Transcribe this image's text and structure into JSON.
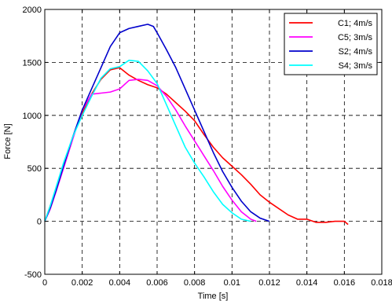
{
  "chart_data": {
    "type": "line",
    "xlabel": "Time [s]",
    "ylabel": "Force [N]",
    "xlim": [
      0,
      0.018
    ],
    "ylim": [
      -500,
      2000
    ],
    "xticks": [
      0,
      0.002,
      0.004,
      0.006,
      0.008,
      0.01,
      0.012,
      0.014,
      0.016,
      0.018
    ],
    "xtick_labels": [
      "0",
      "0.002",
      "0.004",
      "0.006",
      "0.008",
      "0.01",
      "0.012",
      "0.014",
      "0.016",
      "0.018"
    ],
    "yticks": [
      -500,
      0,
      500,
      1000,
      1500,
      2000
    ],
    "ytick_labels": [
      "-500",
      "0",
      "500",
      "1000",
      "1500",
      "2000"
    ],
    "grid": true,
    "legend_position": "top-right",
    "series": [
      {
        "name": "C1; 4m/s",
        "color": "#ff0000",
        "x": [
          0,
          0.0003,
          0.0006,
          0.001,
          0.0015,
          0.002,
          0.0025,
          0.003,
          0.0035,
          0.004,
          0.0045,
          0.005,
          0.0055,
          0.006,
          0.0065,
          0.007,
          0.0075,
          0.008,
          0.0085,
          0.009,
          0.0095,
          0.01,
          0.0105,
          0.011,
          0.0115,
          0.012,
          0.0125,
          0.013,
          0.0135,
          0.014,
          0.0145,
          0.015,
          0.0155,
          0.016,
          0.0162
        ],
        "y": [
          0,
          150,
          300,
          520,
          800,
          1020,
          1200,
          1340,
          1430,
          1450,
          1380,
          1330,
          1290,
          1260,
          1200,
          1120,
          1040,
          950,
          820,
          700,
          600,
          520,
          440,
          350,
          250,
          180,
          120,
          60,
          20,
          20,
          -10,
          -10,
          0,
          0,
          -30
        ]
      },
      {
        "name": "C5; 3m/s",
        "color": "#ff00ff",
        "x": [
          0,
          0.0003,
          0.0006,
          0.001,
          0.0015,
          0.002,
          0.0025,
          0.003,
          0.0035,
          0.004,
          0.0045,
          0.005,
          0.0055,
          0.006,
          0.0065,
          0.007,
          0.0075,
          0.008,
          0.0085,
          0.009,
          0.0095,
          0.01,
          0.0105,
          0.011,
          0.0113
        ],
        "y": [
          0,
          120,
          280,
          500,
          780,
          1050,
          1200,
          1210,
          1220,
          1250,
          1330,
          1340,
          1330,
          1280,
          1180,
          1050,
          900,
          760,
          620,
          480,
          330,
          200,
          90,
          20,
          0
        ]
      },
      {
        "name": "S2; 4m/s",
        "color": "#0000cc",
        "x": [
          0,
          0.0003,
          0.0006,
          0.001,
          0.0015,
          0.002,
          0.0025,
          0.003,
          0.0035,
          0.004,
          0.0045,
          0.005,
          0.0055,
          0.0058,
          0.006,
          0.0065,
          0.007,
          0.0075,
          0.008,
          0.0085,
          0.009,
          0.0095,
          0.01,
          0.0105,
          0.011,
          0.0115,
          0.012
        ],
        "y": [
          0,
          130,
          290,
          520,
          800,
          1050,
          1250,
          1450,
          1650,
          1780,
          1820,
          1840,
          1860,
          1840,
          1780,
          1620,
          1450,
          1250,
          1050,
          850,
          650,
          470,
          320,
          190,
          90,
          30,
          0
        ]
      },
      {
        "name": "S4; 3m/s",
        "color": "#00ffff",
        "x": [
          0,
          0.0003,
          0.0006,
          0.001,
          0.0015,
          0.002,
          0.0025,
          0.003,
          0.0035,
          0.004,
          0.0045,
          0.005,
          0.0055,
          0.006,
          0.0065,
          0.007,
          0.0075,
          0.008,
          0.0085,
          0.009,
          0.0095,
          0.01,
          0.0105,
          0.011
        ],
        "y": [
          0,
          150,
          320,
          550,
          800,
          1000,
          1180,
          1350,
          1440,
          1460,
          1520,
          1510,
          1420,
          1300,
          1100,
          900,
          700,
          550,
          420,
          280,
          160,
          80,
          20,
          0
        ]
      }
    ]
  }
}
